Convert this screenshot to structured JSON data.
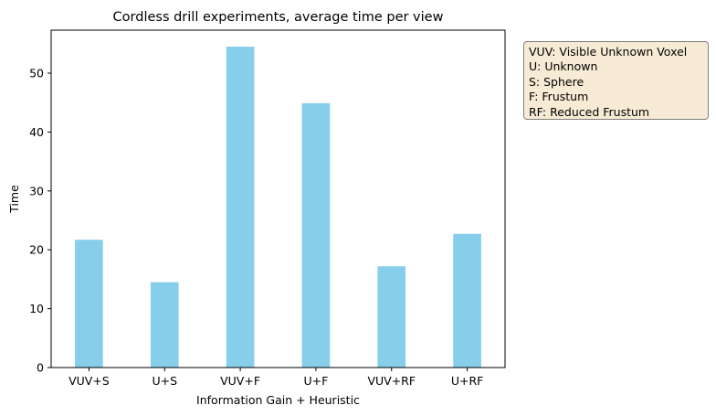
{
  "chart_data": {
    "type": "bar",
    "title": "Cordless drill experiments, average time per view",
    "xlabel": "Information Gain + Heuristic",
    "ylabel": "Time",
    "categories": [
      "VUV+S",
      "U+S",
      "VUV+F",
      "U+F",
      "VUV+RF",
      "U+RF"
    ],
    "values": [
      21.7,
      14.5,
      54.5,
      44.9,
      17.2,
      22.7
    ],
    "ylim": [
      0,
      57.3
    ],
    "yticks": [
      0,
      10,
      20,
      30,
      40,
      50
    ],
    "bar_color": "#87ceeb",
    "grid": false,
    "annotation": {
      "placement": "right",
      "lines": [
        "VUV: Visible Unknown Voxel",
        "U: Unknown",
        "S: Sphere",
        "F: Frustum",
        "RF: Reduced Frustum"
      ]
    }
  }
}
